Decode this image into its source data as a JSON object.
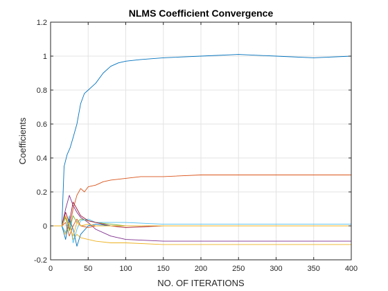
{
  "chart_data": {
    "type": "line",
    "title": "NLMS Coefficient Convergence",
    "xlabel": "NO. OF ITERATIONS",
    "ylabel": "Coefficients",
    "xlim": [
      0,
      400
    ],
    "ylim": [
      -0.2,
      1.2
    ],
    "xticks": [
      0,
      50,
      100,
      150,
      200,
      250,
      300,
      350,
      400
    ],
    "yticks": [
      -0.2,
      0,
      0.2,
      0.4,
      0.6,
      0.8,
      1,
      1.2
    ],
    "xtick_labels": [
      "0",
      "50",
      "100",
      "150",
      "200",
      "250",
      "300",
      "350",
      "400"
    ],
    "ytick_labels": [
      "-0.2",
      "0",
      "0.2",
      "0.4",
      "0.6",
      "0.8",
      "1",
      "1.2"
    ],
    "grid": true,
    "series": [
      {
        "color": "#0072BD",
        "x": [
          0,
          15,
          18,
          22,
          26,
          30,
          35,
          40,
          45,
          50,
          60,
          70,
          80,
          90,
          100,
          120,
          150,
          200,
          250,
          300,
          350,
          400
        ],
        "y": [
          0,
          0,
          0.35,
          0.42,
          0.46,
          0.52,
          0.6,
          0.72,
          0.78,
          0.8,
          0.84,
          0.9,
          0.94,
          0.96,
          0.97,
          0.98,
          0.99,
          1.0,
          1.01,
          1.0,
          0.99,
          1.0
        ]
      },
      {
        "color": "#D95319",
        "x": [
          0,
          15,
          20,
          25,
          30,
          35,
          40,
          45,
          50,
          60,
          70,
          80,
          100,
          120,
          150,
          200,
          250,
          300,
          350,
          400
        ],
        "y": [
          0,
          0,
          0.05,
          -0.02,
          0.1,
          0.18,
          0.22,
          0.2,
          0.23,
          0.24,
          0.26,
          0.27,
          0.28,
          0.29,
          0.29,
          0.3,
          0.3,
          0.3,
          0.3,
          0.3
        ]
      },
      {
        "color": "#EDB120",
        "x": [
          0,
          15,
          20,
          25,
          30,
          35,
          40,
          50,
          60,
          80,
          100,
          150,
          200,
          250,
          300,
          350,
          400
        ],
        "y": [
          0,
          0,
          -0.05,
          0.02,
          -0.08,
          -0.05,
          -0.07,
          -0.08,
          -0.09,
          -0.1,
          -0.1,
          -0.11,
          -0.11,
          -0.11,
          -0.11,
          -0.11,
          -0.11
        ]
      },
      {
        "color": "#7E2F8E",
        "x": [
          0,
          15,
          20,
          25,
          30,
          35,
          40,
          50,
          60,
          80,
          100,
          150,
          200,
          250,
          300,
          350,
          400
        ],
        "y": [
          0,
          0,
          0.1,
          0.18,
          0.12,
          0.08,
          0.05,
          0.02,
          -0.02,
          -0.06,
          -0.08,
          -0.09,
          -0.09,
          -0.09,
          -0.09,
          -0.09,
          -0.09
        ]
      },
      {
        "color": "#77AC30",
        "x": [
          0,
          15,
          20,
          25,
          30,
          35,
          40,
          50,
          60,
          80,
          100,
          150,
          200,
          250,
          300,
          350,
          400
        ],
        "y": [
          0,
          0,
          0.05,
          -0.03,
          0.06,
          0.02,
          0.04,
          0.03,
          0.02,
          0.01,
          0.0,
          0.0,
          0.0,
          0.0,
          0.0,
          0.0,
          0.0
        ]
      },
      {
        "color": "#4DBEEE",
        "x": [
          0,
          15,
          20,
          25,
          30,
          35,
          40,
          50,
          60,
          80,
          100,
          150,
          200,
          250,
          300,
          350,
          400
        ],
        "y": [
          0,
          0,
          -0.04,
          0.06,
          -0.1,
          -0.02,
          0.03,
          0.04,
          0.02,
          0.02,
          0.02,
          0.01,
          0.01,
          0.01,
          0.01,
          0.01,
          0.01
        ]
      },
      {
        "color": "#A2142F",
        "x": [
          0,
          15,
          20,
          25,
          30,
          35,
          40,
          50,
          60,
          80,
          100,
          150,
          200,
          250,
          300,
          350,
          400
        ],
        "y": [
          0,
          0,
          0.08,
          0.02,
          0.14,
          0.1,
          0.06,
          0.03,
          0.02,
          0.0,
          -0.01,
          0.0,
          0.0,
          0.0,
          0.0,
          0.0,
          0.0
        ]
      },
      {
        "color": "#0072BD",
        "x": [
          0,
          15,
          20,
          25,
          30,
          35,
          40,
          50,
          60,
          80,
          100,
          150,
          200,
          250,
          300,
          350,
          400
        ],
        "y": [
          0,
          0,
          -0.08,
          0.04,
          -0.02,
          -0.12,
          -0.05,
          0.0,
          0.01,
          0.0,
          0.0,
          0.0,
          0.0,
          0.0,
          0.0,
          0.0,
          0.0
        ]
      },
      {
        "color": "#D95319",
        "x": [
          0,
          15,
          20,
          25,
          30,
          35,
          40,
          50,
          60,
          80,
          100,
          150,
          200,
          250,
          300,
          350,
          400
        ],
        "y": [
          0,
          0,
          0.02,
          -0.06,
          0.0,
          0.04,
          0.0,
          -0.01,
          0.0,
          0.0,
          0.0,
          0.0,
          0.0,
          0.0,
          0.0,
          0.0,
          0.0
        ]
      },
      {
        "color": "#EDB120",
        "x": [
          0,
          15,
          20,
          25,
          30,
          35,
          40,
          50,
          60,
          80,
          100,
          150,
          200,
          250,
          300,
          350,
          400
        ],
        "y": [
          0,
          0,
          0.06,
          0.0,
          -0.06,
          0.02,
          0.0,
          0.01,
          0.0,
          0.0,
          0.0,
          0.0,
          0.0,
          0.0,
          0.0,
          0.0,
          0.0
        ]
      }
    ]
  }
}
